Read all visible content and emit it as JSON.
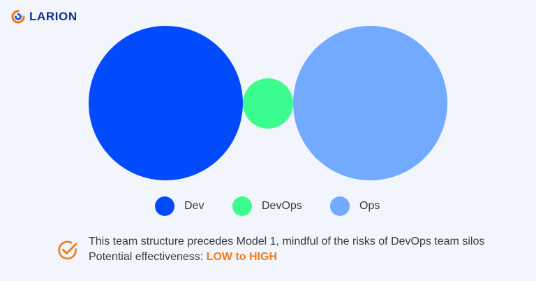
{
  "brand": {
    "name": "LARION",
    "text_color": "#12308a",
    "mark_colors": [
      "#f07b1c",
      "#1e5ae6"
    ]
  },
  "diagram": {
    "circles": [
      {
        "label": "Dev",
        "color": "#024bfc"
      },
      {
        "label": "DevOps",
        "color": "#3afc8f"
      },
      {
        "label": "Ops",
        "color": "#71aaff"
      }
    ]
  },
  "legend": [
    {
      "label": "Dev",
      "color": "#024bfc"
    },
    {
      "label": "DevOps",
      "color": "#3afc8f"
    },
    {
      "label": "Ops",
      "color": "#71aaff"
    }
  ],
  "note": {
    "icon": "check-circle-icon",
    "icon_color": "#f07b1c",
    "line1": "This team structure precedes Model 1, mindful of the risks of DevOps team silos",
    "effectiveness_label": "Potential effectiveness: ",
    "effectiveness_value": "LOW to HIGH",
    "effectiveness_color": "#f07b1c"
  }
}
